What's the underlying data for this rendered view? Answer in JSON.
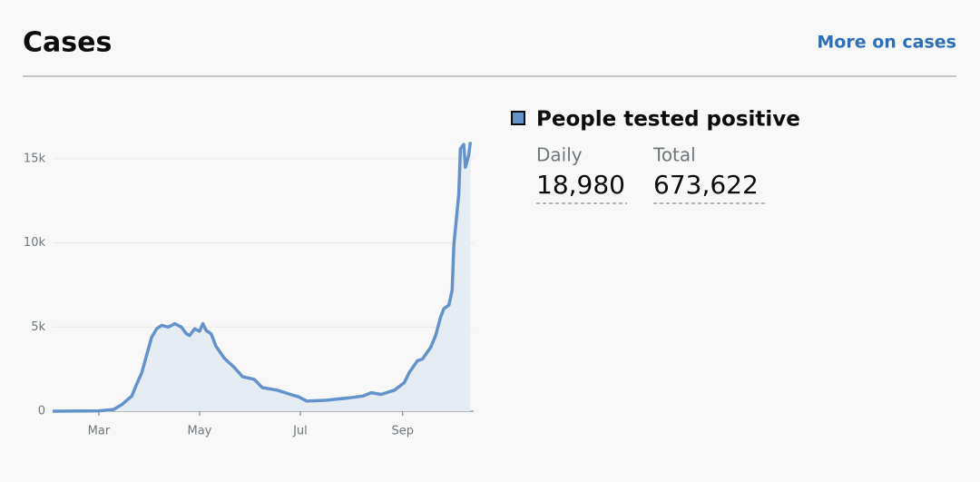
{
  "header": {
    "title": "Cases",
    "link": "More on cases"
  },
  "summary": {
    "metric": "People tested positive",
    "daily_label": "Daily",
    "daily_value": "18,980",
    "total_label": "Total",
    "total_value": "673,622"
  },
  "chart_data": {
    "type": "area",
    "color": "#6393ca",
    "fill": "#e6ecf3",
    "grid": true,
    "x": [
      1,
      29,
      38,
      43,
      49,
      51,
      55,
      59,
      61,
      64,
      67,
      71,
      75,
      79,
      82,
      84,
      87,
      90,
      92,
      94,
      97,
      100,
      105,
      111,
      116,
      123,
      128,
      137,
      145,
      150,
      155,
      167,
      181,
      189,
      194,
      200,
      208,
      214,
      217,
      222,
      225,
      230,
      233,
      236,
      238,
      241,
      243,
      244,
      247,
      248,
      250,
      251,
      253,
      254
    ],
    "series": [
      {
        "name": "People tested positive",
        "color": "#6393ca",
        "values": [
          0,
          20,
          100,
          400,
          900,
          1400,
          2300,
          3700,
          4400,
          4900,
          5100,
          5000,
          5200,
          5000,
          4600,
          4500,
          4900,
          4750,
          5200,
          4800,
          4600,
          3850,
          3150,
          2600,
          2050,
          1900,
          1400,
          1250,
          1000,
          850,
          600,
          650,
          800,
          900,
          1100,
          1000,
          1250,
          1700,
          2300,
          3000,
          3100,
          3800,
          4500,
          5600,
          6100,
          6300,
          7200,
          9900,
          12900,
          15600,
          15850,
          14500,
          15200,
          16000
        ]
      }
    ],
    "xlim": [
      1,
      256
    ],
    "xticks": [
      {
        "value": 29,
        "label": "Mar"
      },
      {
        "value": 90,
        "label": "May"
      },
      {
        "value": 151,
        "label": "Jul"
      },
      {
        "value": 213,
        "label": "Sep"
      }
    ],
    "ylim": [
      0,
      18500
    ],
    "yticks": [
      0,
      {
        "value": 5000,
        "label": "5k"
      },
      {
        "value": 10000,
        "label": "10k"
      },
      {
        "value": 15000,
        "label": "15k"
      }
    ]
  }
}
